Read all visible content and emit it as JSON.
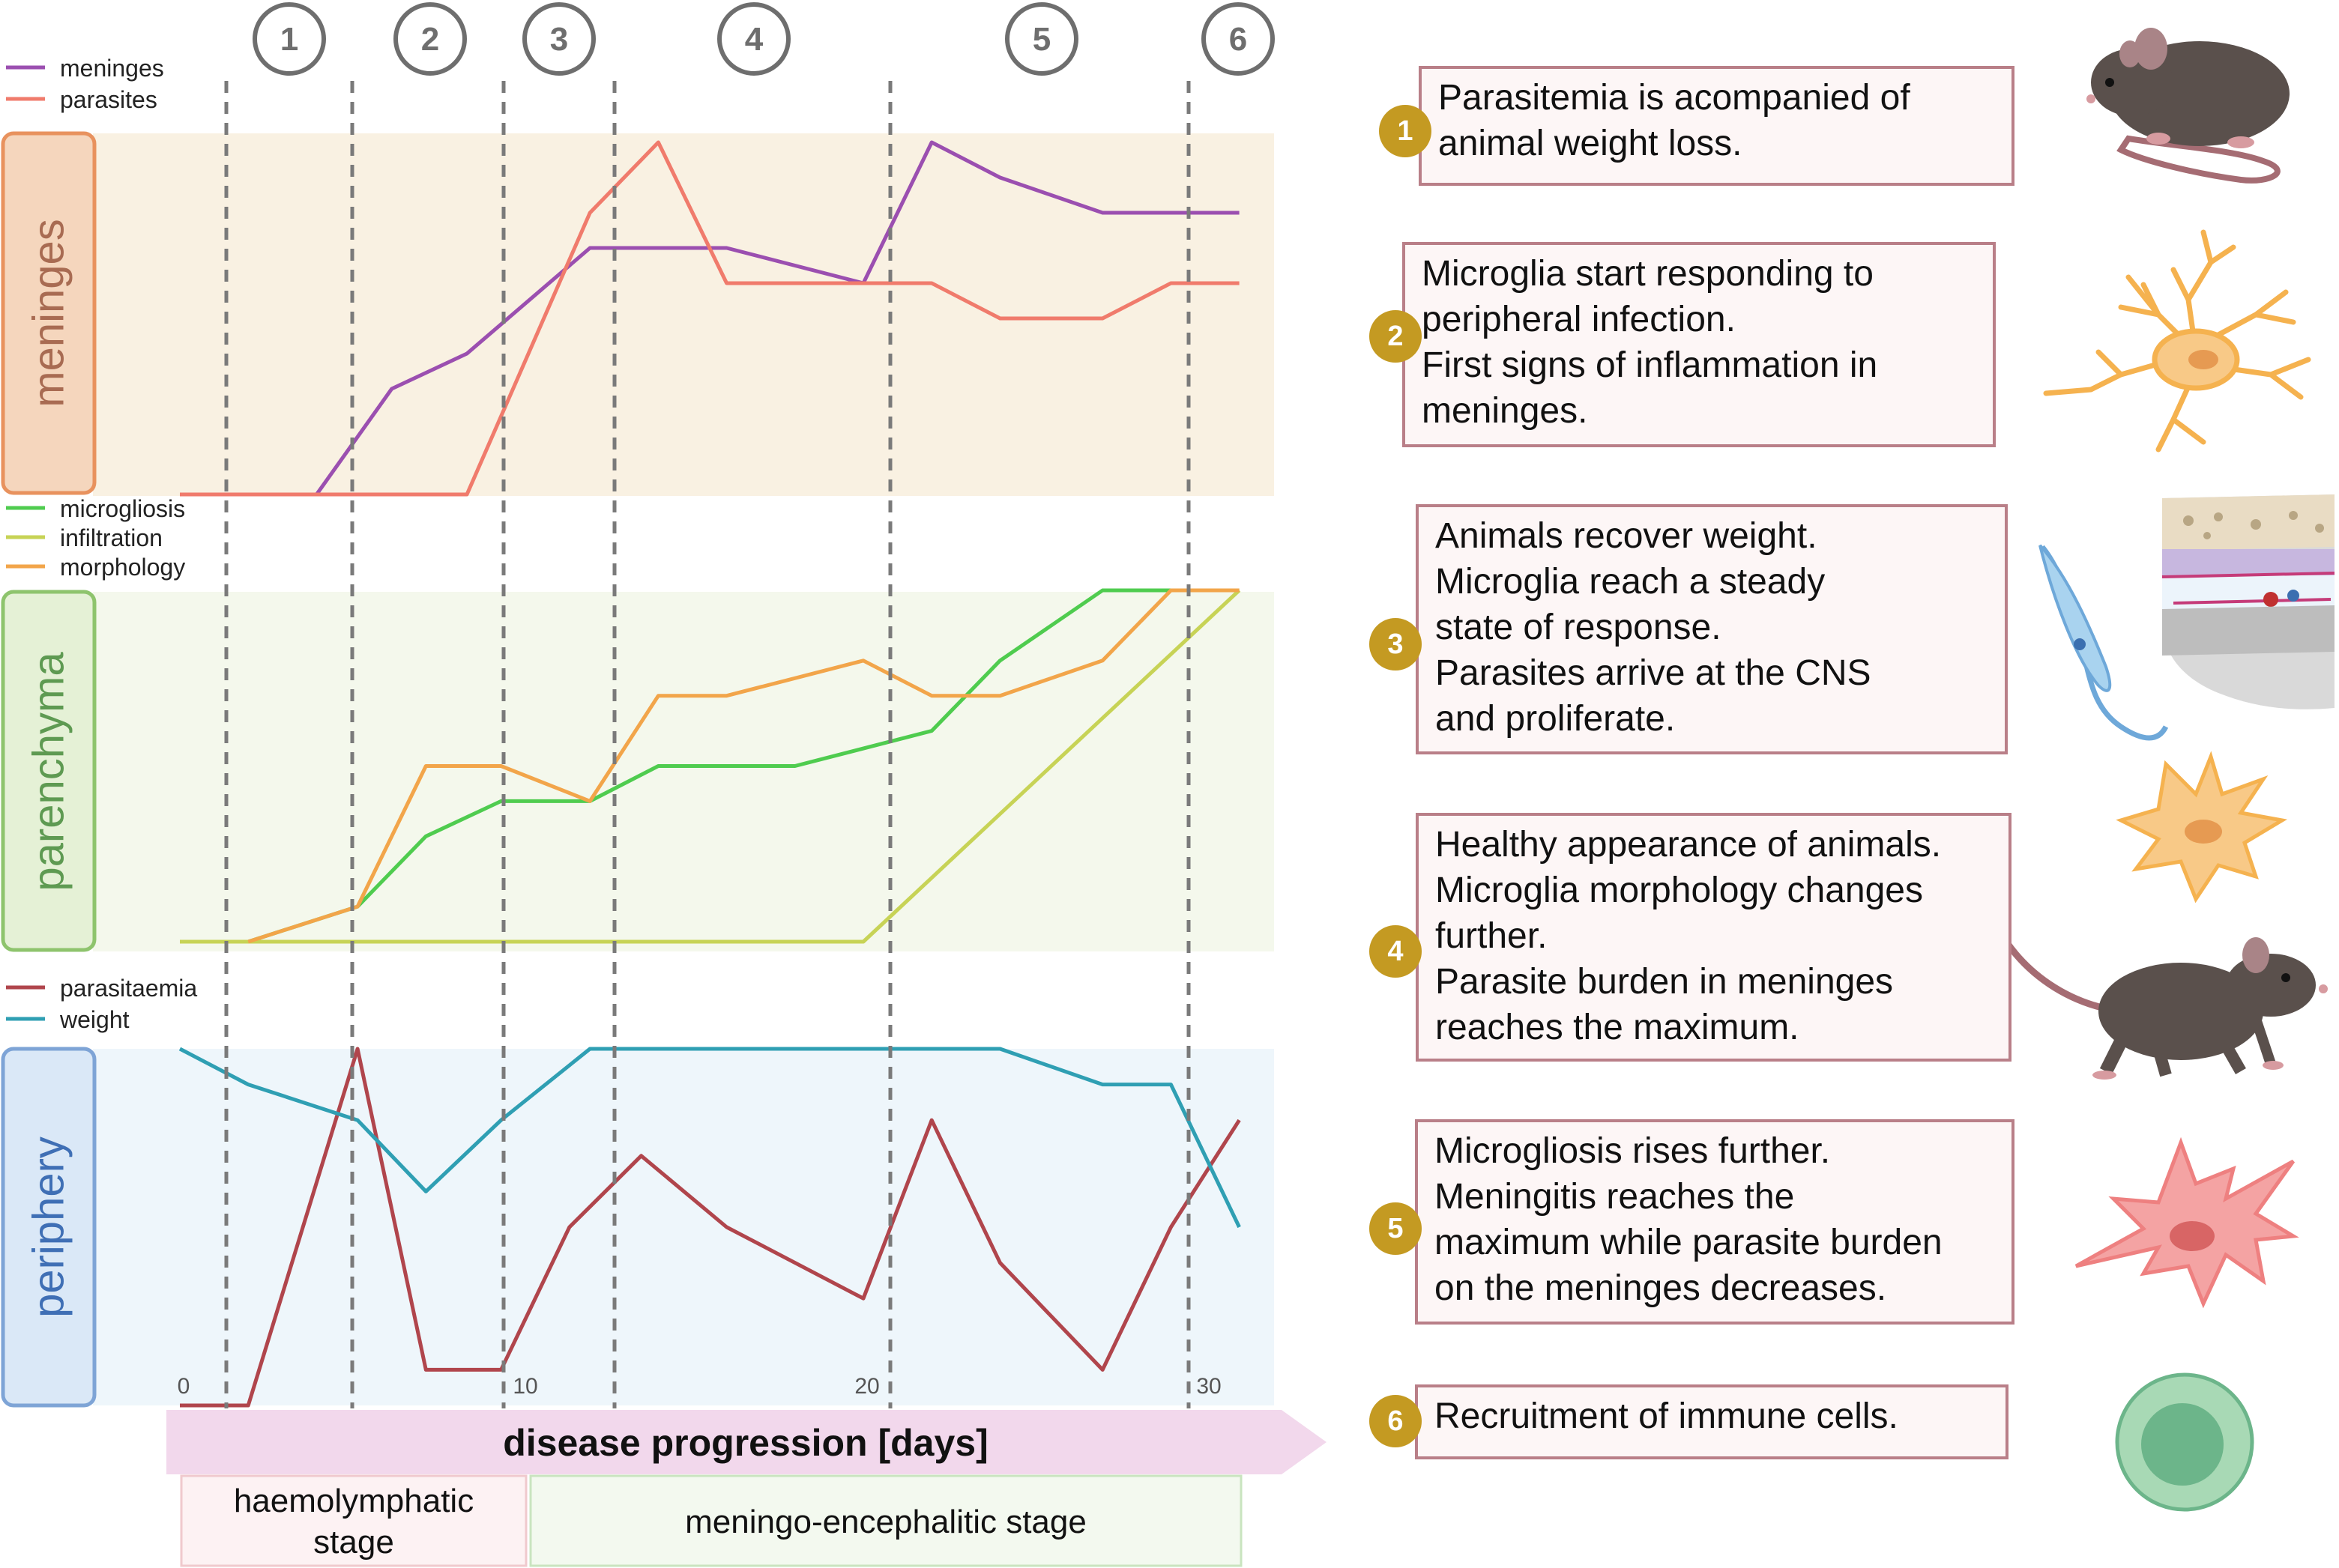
{
  "chart_data": {
    "type": "line",
    "xlabel": "disease progression [days]",
    "x_ticks": [
      {
        "value": 0,
        "label": "0"
      },
      {
        "value": 10,
        "label": "10"
      },
      {
        "value": 20,
        "label": "20"
      },
      {
        "value": 30,
        "label": "30"
      }
    ],
    "x": [
      0,
      2,
      4,
      6,
      8,
      10,
      12,
      14,
      16,
      18,
      20,
      22,
      24,
      26,
      28,
      30
    ],
    "xlim": [
      0,
      30
    ],
    "phase_markers": [
      {
        "label": "1",
        "day": 1.5
      },
      {
        "label": "2",
        "day": 5.3
      },
      {
        "label": "3",
        "day": 9.6
      },
      {
        "label": "4",
        "day": 12.8
      },
      {
        "label": "5",
        "day": 20.6
      },
      {
        "label": "6",
        "day": 29.2
      }
    ],
    "stages": [
      {
        "label": "haemolymphatic stage",
        "from": 0,
        "to": 10
      },
      {
        "label": "meningo-encephalitic stage",
        "from": 10,
        "to": 30
      }
    ],
    "panels": [
      {
        "title": "meninges",
        "color": "#e8925e",
        "background": "#f9f1e2",
        "series": [
          {
            "name": "meninges",
            "color": "#9b4fb0",
            "values": [
              0,
              0,
              0,
              0.3,
              0.4,
              0.7,
              0.7,
              0.7,
              0.6,
              1.0,
              0.9,
              0.8,
              0.8,
              0.8
            ]
          },
          {
            "name": "parasites",
            "color": "#f07b6c",
            "values": [
              0,
              0,
              0,
              0,
              0,
              0.8,
              1.0,
              0.6,
              0.6,
              0.6,
              0.5,
              0.5,
              0.6,
              0.6
            ]
          }
        ],
        "x": [
          0,
          2,
          4,
          6.2,
          8.4,
          12,
          14,
          16,
          20,
          22,
          24,
          27,
          29,
          31
        ]
      },
      {
        "title": "parenchyma",
        "color": "#6cb061",
        "background": "#f4f8ec",
        "series": [
          {
            "name": "microgliosis",
            "color": "#4fcc4f",
            "x": [
              0,
              2,
              5.2,
              7.2,
              9.4,
              12,
              14,
              18,
              22,
              24,
              27,
              29,
              31
            ],
            "values": [
              0,
              0,
              0.1,
              0.3,
              0.4,
              0.4,
              0.5,
              0.5,
              0.6,
              0.8,
              1.0,
              1.0,
              1.0
            ]
          },
          {
            "name": "infiltration",
            "color": "#c7d356",
            "x": [
              0,
              2,
              4,
              6,
              8,
              10,
              12,
              14,
              16,
              18,
              20,
              31
            ],
            "values": [
              0,
              0,
              0,
              0,
              0,
              0,
              0,
              0,
              0,
              0,
              0,
              1.0
            ]
          },
          {
            "name": "morphology",
            "color": "#f2a54a",
            "x": [
              2,
              5.2,
              7.2,
              9.4,
              12,
              14,
              16,
              20,
              22,
              24,
              27,
              29,
              31
            ],
            "values": [
              0,
              0.1,
              0.5,
              0.5,
              0.4,
              0.7,
              0.7,
              0.8,
              0.7,
              0.7,
              0.8,
              1.0,
              1.0
            ]
          }
        ]
      },
      {
        "title": "periphery",
        "color": "#5a86c8",
        "background": "#eef6fb",
        "series": [
          {
            "name": "parasitaemia",
            "color": "#b0454c",
            "x": [
              0,
              2,
              5.2,
              7.2,
              9.4,
              11.4,
              13.5,
              16,
              20,
              22,
              24,
              27,
              29,
              31
            ],
            "values": [
              0,
              0,
              1.0,
              0.1,
              0.1,
              0.5,
              0.7,
              0.5,
              0.3,
              0.8,
              0.4,
              0.1,
              0.5,
              0.8
            ]
          },
          {
            "name": "weight",
            "color": "#2f9fb3",
            "x": [
              0,
              2,
              5.2,
              7.2,
              9.4,
              12,
              14,
              18,
              22,
              24,
              27,
              29,
              31
            ],
            "values": [
              1.0,
              0.9,
              0.8,
              0.6,
              0.8,
              1.0,
              1.0,
              1.0,
              1.0,
              1.0,
              0.9,
              0.9,
              0.5
            ]
          }
        ]
      }
    ]
  },
  "descriptions": [
    {
      "number": "1",
      "lines": [
        "Parasitemia is acompanied of",
        "animal weight loss."
      ]
    },
    {
      "number": "2",
      "lines": [
        "Microglia start responding to",
        "peripheral infection.",
        "First signs of inflammation in",
        "meninges."
      ]
    },
    {
      "number": "3",
      "lines": [
        "Animals recover weight.",
        "Microglia reach a steady",
        "state of response.",
        "Parasites arrive at the CNS",
        "and proliferate."
      ]
    },
    {
      "number": "4",
      "lines": [
        "Healthy appearance of animals.",
        "Microglia morphology changes",
        "further.",
        "Parasite burden in meninges",
        "reaches the maximum."
      ]
    },
    {
      "number": "5",
      "lines": [
        "Microgliosis rises further.",
        "Meningitis reaches the",
        "maximum while parasite burden",
        "on the meninges decreases."
      ]
    },
    {
      "number": "6",
      "lines": [
        "Recruitment of immune cells."
      ]
    }
  ],
  "colors": {
    "badge": "#c49a22",
    "card_border": "#b97f88",
    "card_fill": "#fdf6f6",
    "arrow": "#f2d8ec",
    "marker_circle": "#6e6e6e"
  },
  "illustrations": [
    "mouse-icon",
    "microglia-cell-icon",
    "trypanosome-icon",
    "brain-meninges-icon",
    "activated-microglia-icon",
    "walking-mouse-icon",
    "reactive-microglia-icon",
    "immune-cell-icon"
  ]
}
